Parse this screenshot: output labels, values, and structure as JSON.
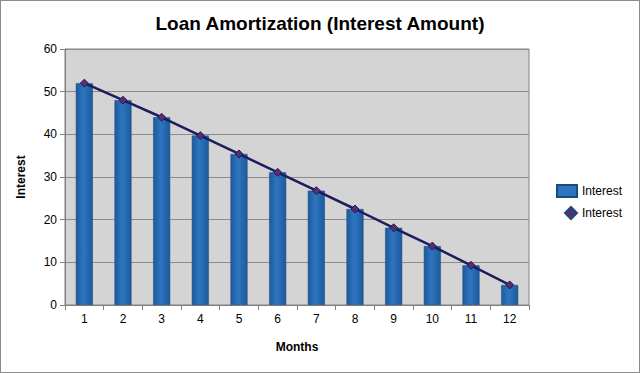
{
  "chart_data": {
    "type": "bar",
    "title": "Loan Amortization (Interest Amount)",
    "x_label": "Months",
    "y_label": "Interest",
    "categories": [
      "1",
      "2",
      "3",
      "4",
      "5",
      "6",
      "7",
      "8",
      "9",
      "10",
      "11",
      "12"
    ],
    "series": [
      {
        "name": "Interest",
        "type": "bar",
        "color": "#2e75c0",
        "values": [
          52,
          48,
          44,
          39.7,
          35.4,
          31.1,
          26.8,
          22.5,
          18.1,
          13.8,
          9.3,
          4.7
        ]
      },
      {
        "name": "Interest",
        "type": "line",
        "color": "#1c1c5e",
        "marker": "diamond",
        "values": [
          52,
          48,
          44,
          39.7,
          35.4,
          31.1,
          26.8,
          22.5,
          18.1,
          13.8,
          9.3,
          4.7
        ]
      }
    ],
    "ylim": [
      0,
      60
    ],
    "yticks": [
      0,
      10,
      20,
      30,
      40,
      50,
      60
    ],
    "grid": true,
    "legend": "right"
  }
}
